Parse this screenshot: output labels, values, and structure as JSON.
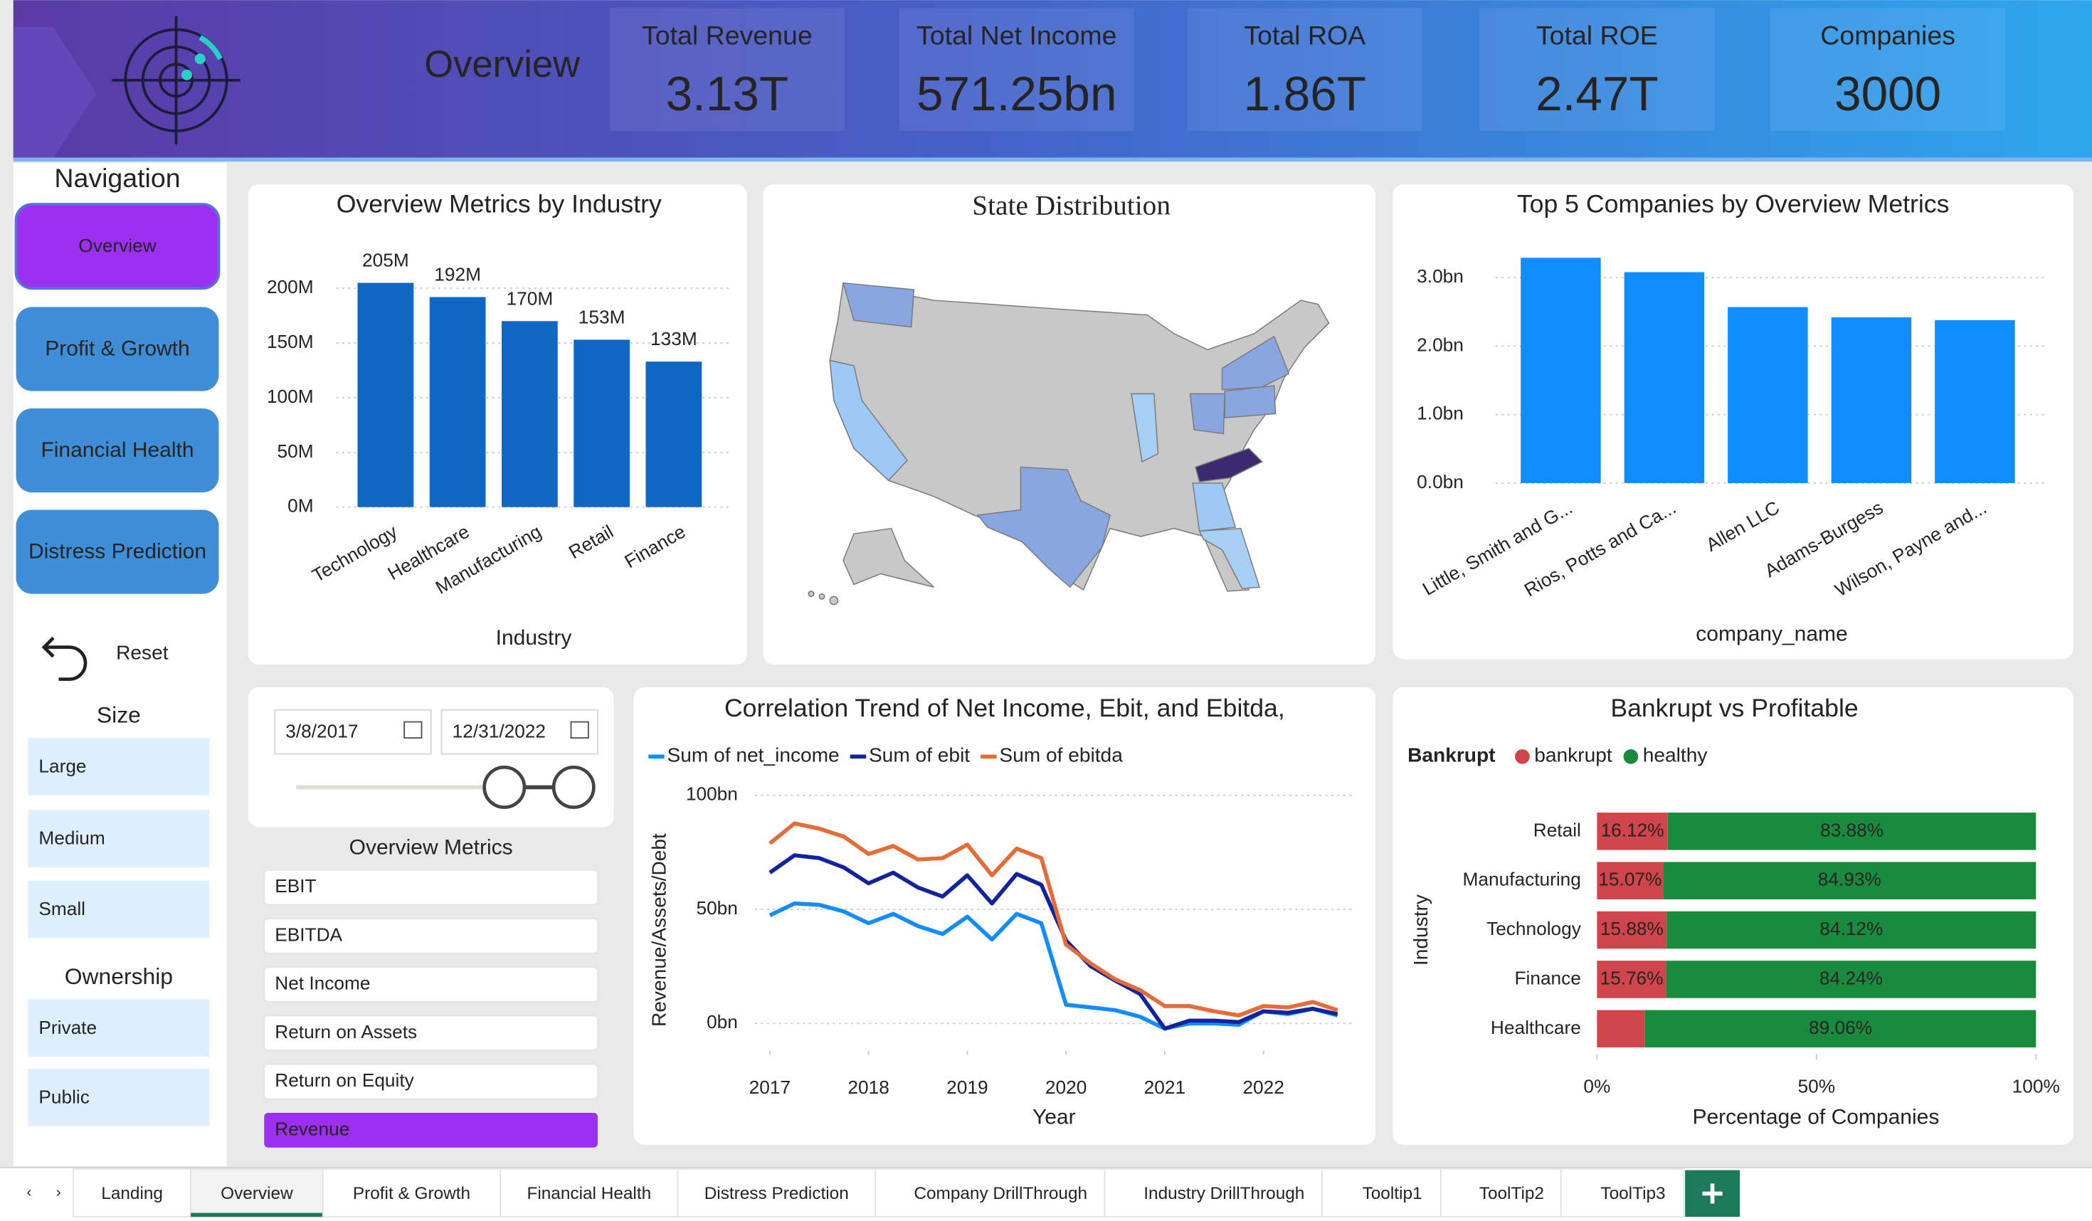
{
  "header": {
    "title": "Overview",
    "kpis": [
      {
        "label": "Total Revenue",
        "value": "3.13T"
      },
      {
        "label": "Total Net Income",
        "value": "571.25bn"
      },
      {
        "label": "Total ROA",
        "value": "1.86T"
      },
      {
        "label": "Total ROE",
        "value": "2.47T"
      },
      {
        "label": "Companies",
        "value": "3000"
      }
    ]
  },
  "navigation": {
    "title": "Navigation",
    "pages": [
      "Overview",
      "Profit & Growth",
      "Financial Health",
      "Distress Prediction"
    ],
    "active": 0,
    "reset": "Reset",
    "size_title": "Size",
    "sizes": [
      "Large",
      "Medium",
      "Small"
    ],
    "ownership_title": "Ownership",
    "ownerships": [
      "Private",
      "Public"
    ]
  },
  "date_slicer": {
    "start": "3/8/2017",
    "end": "12/31/2022"
  },
  "metric_slicer": {
    "title": "Overview Metrics",
    "items": [
      "EBIT",
      "EBITDA",
      "Net Income",
      "Return on Assets",
      "Return on Equity",
      "Revenue"
    ],
    "selected": 5
  },
  "chart_data": [
    {
      "type": "bar",
      "title": "Overview Metrics by Industry",
      "x_label": "Industry",
      "categories": [
        "Technology",
        "Healthcare",
        "Manufacturing",
        "Retail",
        "Finance"
      ],
      "values": [
        205000000,
        192000000,
        170000000,
        153000000,
        133000000
      ],
      "value_labels": [
        "205M",
        "192M",
        "170M",
        "153M",
        "133M"
      ],
      "color": "#1068c4",
      "ylim": [
        0,
        200000000
      ],
      "yticks": [
        {
          "value": 0,
          "label": "0M"
        },
        {
          "value": 50000000,
          "label": "50M"
        },
        {
          "value": 100000000,
          "label": "100M"
        },
        {
          "value": 150000000,
          "label": "150M"
        },
        {
          "value": 200000000,
          "label": "200M"
        }
      ],
      "grid": true
    },
    {
      "type": "map",
      "title": "State Distribution"
    },
    {
      "type": "bar",
      "title": "Top 5 Companies by Overview Metrics",
      "x_label": "company_name",
      "categories": [
        "Little, Smith and G...",
        "Rios, Potts and Ca...",
        "Allen LLC",
        "Adams-Burgess",
        "Wilson, Payne and..."
      ],
      "values": [
        3290000000,
        3080000000,
        2570000000,
        2420000000,
        2380000000
      ],
      "color": "#118dff",
      "ylim": [
        0,
        3000000000
      ],
      "yticks": [
        {
          "value": 0,
          "label": "0.0bn"
        },
        {
          "value": 1000000000,
          "label": "1.0bn"
        },
        {
          "value": 2000000000,
          "label": "2.0bn"
        },
        {
          "value": 3000000000,
          "label": "3.0bn"
        }
      ],
      "grid": true
    },
    {
      "type": "line",
      "title": "Correlation Trend of Net Income, Ebit, and Ebitda,",
      "x_label": "Year",
      "y_label": "Revenue/Assets/Debt",
      "x": [
        2017,
        2017.25,
        2017.5,
        2017.75,
        2018,
        2018.25,
        2018.5,
        2018.75,
        2019,
        2019.25,
        2019.5,
        2019.75,
        2020,
        2020.25,
        2020.5,
        2020.75,
        2021,
        2021.25,
        2021.5,
        2021.75,
        2022,
        2022.25,
        2022.5,
        2022.75
      ],
      "series": [
        {
          "name": "Sum of net_income",
          "color": "#118dff",
          "values": [
            47.4,
            52.6,
            52.0,
            49.1,
            43.9,
            48.0,
            42.7,
            39.2,
            46.8,
            36.8,
            48.0,
            43.9,
            8.2,
            7.0,
            5.8,
            2.9,
            -2.3,
            0.0,
            0.0,
            -0.6,
            5.3,
            4.1,
            6.4,
            3.5
          ]
        },
        {
          "name": "Sum of ebit",
          "color": "#12239e",
          "values": [
            66.1,
            73.7,
            72.5,
            68.4,
            61.4,
            66.1,
            59.6,
            55.6,
            64.9,
            52.6,
            65.5,
            60.8,
            36.3,
            25.1,
            18.7,
            12.9,
            -2.3,
            1.2,
            1.2,
            0.6,
            5.3,
            4.7,
            6.4,
            4.1
          ]
        },
        {
          "name": "Sum of ebitda",
          "color": "#e66c37",
          "values": [
            78.9,
            87.7,
            85.4,
            81.9,
            74.3,
            77.8,
            71.9,
            72.5,
            78.4,
            64.9,
            76.6,
            72.5,
            34.5,
            26.3,
            19.3,
            14.6,
            7.6,
            7.6,
            5.3,
            3.5,
            7.6,
            7.0,
            9.4,
            5.8
          ]
        }
      ],
      "xlim": [
        2016.85,
        2022.9
      ],
      "xticks": [
        2017,
        2018,
        2019,
        2020,
        2021,
        2022
      ],
      "ylim": [
        -12,
        105
      ],
      "yticks": [
        {
          "value": 0,
          "label": "0bn"
        },
        {
          "value": 50,
          "label": "50bn"
        },
        {
          "value": 100,
          "label": "100bn"
        }
      ],
      "grid": true
    },
    {
      "type": "hbar_stacked100",
      "title": "Bankrupt vs Profitable",
      "legend_title": "Bankrupt",
      "x_label": "Percentage of Companies",
      "y_label": "Industry",
      "categories": [
        "Retail",
        "Manufacturing",
        "Technology",
        "Finance",
        "Healthcare"
      ],
      "series": [
        {
          "name": "bankrupt",
          "color": "#d0454c",
          "values": [
            16.12,
            15.07,
            15.88,
            15.76,
            10.94
          ],
          "value_labels": [
            "16.12%",
            "15.07%",
            "15.88%",
            "15.76%",
            null
          ]
        },
        {
          "name": "healthy",
          "color": "#1a8a3e",
          "values": [
            83.88,
            84.93,
            84.12,
            84.24,
            89.06
          ],
          "value_labels": [
            "83.88%",
            "84.93%",
            "84.12%",
            "84.24%",
            "89.06%"
          ]
        }
      ],
      "xlim": [
        0,
        100
      ],
      "xticks": [
        {
          "value": 0,
          "label": "0%"
        },
        {
          "value": 50,
          "label": "50%"
        },
        {
          "value": 100,
          "label": "100%"
        }
      ]
    }
  ],
  "tabs": {
    "items": [
      "Landing",
      "Overview",
      "Profit & Growth",
      "Financial Health",
      "Distress Prediction",
      "Company DrillThrough",
      "Industry DrillThrough",
      "Tooltip1",
      "ToolTip2",
      "ToolTip3"
    ],
    "active": 1
  }
}
